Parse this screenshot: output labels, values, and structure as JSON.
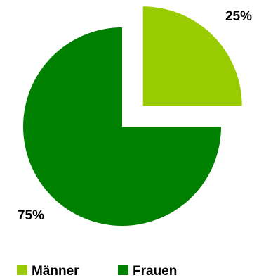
{
  "chart_data": {
    "type": "pie",
    "title": "",
    "categories": [
      "Männer",
      "Frauen"
    ],
    "values": [
      25,
      75
    ],
    "data_labels": [
      "25%",
      "75%"
    ],
    "colors": [
      "#99cc00",
      "#008000"
    ],
    "exploded": [
      "Männer"
    ],
    "legend": {
      "placement": "bottom",
      "entries": [
        "Männer",
        "Frauen"
      ]
    }
  }
}
